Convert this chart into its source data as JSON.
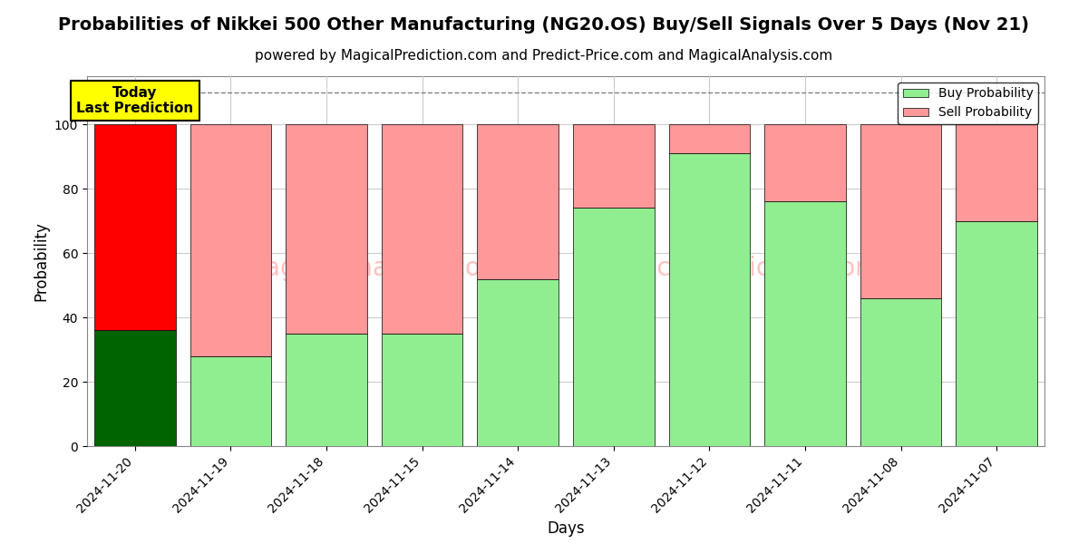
{
  "title": "Probabilities of Nikkei 500 Other Manufacturing (NG20.OS) Buy/Sell Signals Over 5 Days (Nov 21)",
  "subtitle": "powered by MagicalPrediction.com and Predict-Price.com and MagicalAnalysis.com",
  "xlabel": "Days",
  "ylabel": "Probability",
  "categories": [
    "2024-11-20",
    "2024-11-19",
    "2024-11-18",
    "2024-11-15",
    "2024-11-14",
    "2024-11-13",
    "2024-11-12",
    "2024-11-11",
    "2024-11-08",
    "2024-11-07"
  ],
  "buy_values": [
    36,
    28,
    35,
    35,
    52,
    74,
    91,
    76,
    46,
    70
  ],
  "sell_values": [
    64,
    72,
    65,
    65,
    48,
    26,
    9,
    24,
    54,
    30
  ],
  "today_buy_color": "#006400",
  "today_sell_color": "#ff0000",
  "buy_color": "#90EE90",
  "sell_color": "#FF9999",
  "today_annotation": "Today\nLast Prediction",
  "today_annotation_bg": "#FFFF00",
  "ylim": [
    0,
    115
  ],
  "yticks": [
    0,
    20,
    40,
    60,
    80,
    100
  ],
  "dashed_line_y": 110,
  "legend_buy_label": "Buy Probability",
  "legend_sell_label": "Sell Probability",
  "title_fontsize": 14,
  "subtitle_fontsize": 11,
  "axis_label_fontsize": 12,
  "tick_fontsize": 10,
  "watermark_color": "#FF9999",
  "background_color": "#ffffff",
  "grid_color": "#cccccc",
  "bar_width": 0.85
}
